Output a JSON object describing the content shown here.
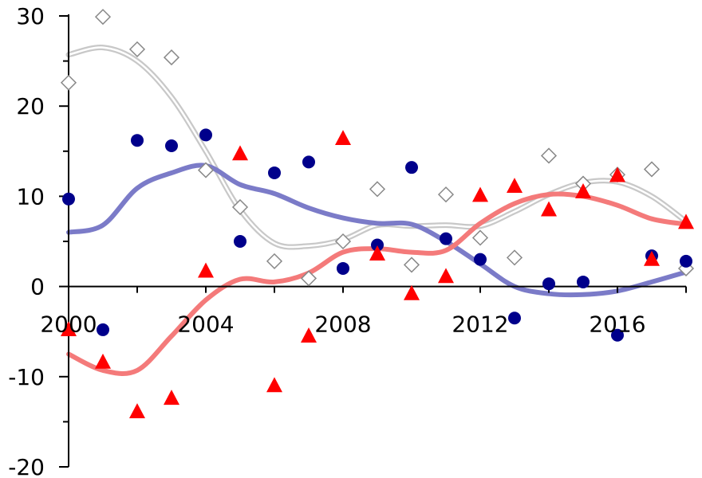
{
  "chart_data": {
    "type": "scatter",
    "title": "",
    "xlabel": "",
    "ylabel": "",
    "xlim": [
      2000,
      2018
    ],
    "ylim": [
      -20,
      30
    ],
    "x_ticks": [
      2000,
      2004,
      2008,
      2012,
      2016
    ],
    "x_tick_labels": [
      "2000",
      "2004",
      "2008",
      "2012",
      "2016"
    ],
    "y_ticks": [
      -20,
      -10,
      0,
      10,
      20,
      30
    ],
    "y_tick_labels": [
      "-20",
      "-10",
      "0",
      "10",
      "20",
      "30"
    ],
    "grid": false,
    "legend": "none",
    "x": [
      2000,
      2001,
      2002,
      2003,
      2004,
      2005,
      2006,
      2007,
      2008,
      2009,
      2010,
      2011,
      2012,
      2013,
      2014,
      2015,
      2016,
      2017,
      2018
    ],
    "series": [
      {
        "marker": "diamond",
        "color": "#ffffff",
        "stroke": "#888888",
        "values": [
          22.6,
          29.9,
          26.3,
          25.4,
          12.9,
          8.8,
          2.8,
          0.9,
          5.0,
          10.8,
          2.4,
          10.2,
          5.4,
          3.2,
          14.5,
          11.4,
          12.4,
          13.0,
          2.0
        ],
        "trend": [
          25.7,
          26.5,
          25.0,
          21.0,
          15.0,
          8.5,
          4.8,
          4.5,
          5.2,
          6.8,
          6.7,
          6.8,
          6.7,
          8.3,
          10.2,
          11.5,
          11.6,
          10.0,
          7.2
        ],
        "trend_color": "#c8c8c8"
      },
      {
        "marker": "circle",
        "color": "#00008b",
        "values": [
          9.7,
          -4.8,
          16.2,
          15.6,
          16.8,
          5.0,
          12.6,
          13.8,
          2.0,
          4.6,
          13.2,
          5.3,
          3.0,
          -3.5,
          0.3,
          0.5,
          -5.4,
          3.4,
          2.8
        ],
        "trend": [
          6.0,
          6.8,
          10.9,
          12.6,
          13.4,
          11.3,
          10.3,
          8.7,
          7.6,
          7.0,
          6.9,
          5.0,
          2.5,
          0.0,
          -0.8,
          -0.9,
          -0.5,
          0.5,
          1.6
        ],
        "trend_color": "#7b7bc8"
      },
      {
        "marker": "triangle",
        "color": "#ff0000",
        "values": [
          -4.8,
          -8.4,
          -13.9,
          -12.4,
          1.7,
          14.7,
          -11.0,
          -5.5,
          16.4,
          3.6,
          -0.8,
          1.1,
          10.1,
          11.1,
          8.5,
          10.5,
          12.3,
          3.0,
          7.1
        ],
        "trend": [
          -7.5,
          -9.3,
          -9.3,
          -5.5,
          -1.5,
          0.8,
          0.5,
          1.5,
          3.8,
          4.2,
          3.8,
          4.0,
          7.0,
          9.2,
          10.2,
          10.0,
          9.0,
          7.5,
          6.9
        ],
        "trend_color": "#f47a7a"
      }
    ]
  }
}
